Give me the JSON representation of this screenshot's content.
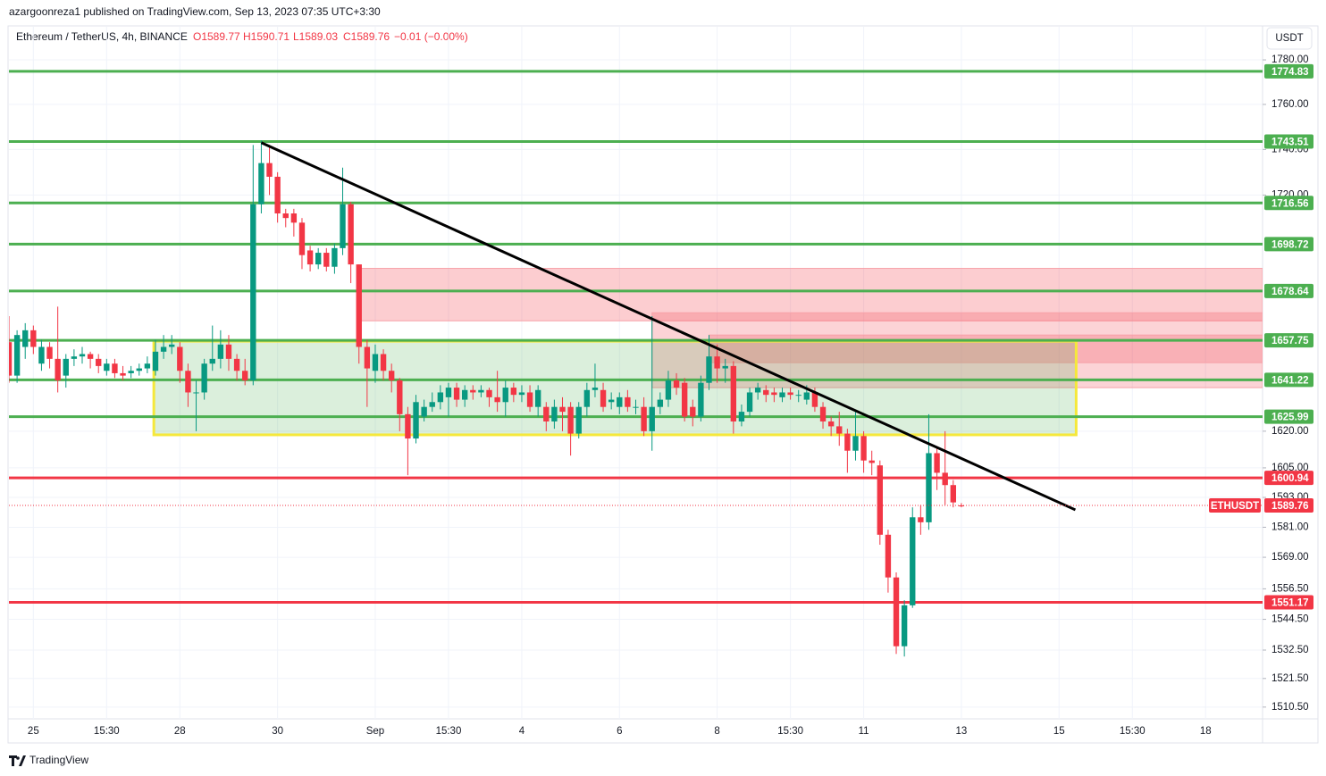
{
  "chart_data": {
    "type": "candlestick",
    "published": "azargoonreza1 published on TradingView.com, Sep 13, 2023 07:35 UTC+3:30",
    "symbol": "Ethereum / TetherUS, 4h, BINANCE",
    "ohlc_labels": [
      "O1589.77",
      "H1590.71",
      "L1589.03",
      "C1589.76"
    ],
    "change": "−0.01 (−0.00%)",
    "currency": "USDT",
    "brand": "TradingView",
    "log_scale": true,
    "grid": true,
    "up_color": "#089981",
    "down_color": "#f23645",
    "ylim": [
      1506,
      1795
    ],
    "yticks": [
      {
        "value": 1780,
        "label": "1780.00"
      },
      {
        "value": 1760,
        "label": "1760.00"
      },
      {
        "value": 1740,
        "label": "1740.00"
      },
      {
        "value": 1720,
        "label": "1720.00"
      },
      {
        "value": 1620,
        "label": "1620.00"
      },
      {
        "value": 1605,
        "label": "1605.00"
      },
      {
        "value": 1593,
        "label": "1593.00"
      },
      {
        "value": 1581,
        "label": "1581.00"
      },
      {
        "value": 1569,
        "label": "1569.00"
      },
      {
        "value": 1556.5,
        "label": "1556.50"
      },
      {
        "value": 1544.5,
        "label": "1544.50"
      },
      {
        "value": 1532.5,
        "label": "1532.50"
      },
      {
        "value": 1521.5,
        "label": "1521.50"
      },
      {
        "value": 1510.5,
        "label": "1510.50"
      }
    ],
    "xlim": [
      0,
      154
    ],
    "xticks": [
      {
        "value": 3,
        "label": "25"
      },
      {
        "value": 12,
        "label": "15:30"
      },
      {
        "value": 21,
        "label": "28"
      },
      {
        "value": 33,
        "label": "30"
      },
      {
        "value": 45,
        "label": "Sep"
      },
      {
        "value": 54,
        "label": "15:30"
      },
      {
        "value": 63,
        "label": "4"
      },
      {
        "value": 75,
        "label": "6"
      },
      {
        "value": 87,
        "label": "8"
      },
      {
        "value": 96,
        "label": "15:30"
      },
      {
        "value": 105,
        "label": "11"
      },
      {
        "value": 117,
        "label": "13"
      },
      {
        "value": 129,
        "label": "15"
      },
      {
        "value": 138,
        "label": "15:30"
      },
      {
        "value": 147,
        "label": "18"
      }
    ],
    "candles": {
      "open": [
        1657,
        1643,
        1655,
        1662,
        1648,
        1655,
        1650,
        1643,
        1650,
        1651,
        1652,
        1650,
        1645,
        1648,
        1644,
        1644,
        1645,
        1646,
        1645,
        1653,
        1655,
        1655,
        1645,
        1636,
        1636,
        1648,
        1650,
        1656,
        1650,
        1645,
        1641,
        1716,
        1734,
        1728,
        1712,
        1712,
        1708,
        1696,
        1690,
        1695,
        1689,
        1697,
        1716,
        1690,
        1655,
        1645,
        1652,
        1645,
        1641,
        1627,
        1617,
        1626,
        1630,
        1632,
        1634,
        1638,
        1633,
        1637,
        1636,
        1637,
        1634,
        1632,
        1638,
        1635,
        1636,
        1630,
        1630,
        1624,
        1630,
        1630,
        1619,
        1630,
        1637,
        1637,
        1632,
        1630,
        1634,
        1630,
        1630,
        1620,
        1630,
        1633,
        1641,
        1640,
        1630,
        1626,
        1640,
        1651,
        1646,
        1647,
        1624,
        1628,
        1636,
        1637,
        1636,
        1634,
        1636,
        1635,
        1633,
        1636,
        1630,
        1624,
        1622,
        1619,
        1612,
        1618,
        1608,
        1606,
        1578,
        1561,
        1534,
        1550,
        1585,
        1583,
        1611,
        1603,
        1598,
        1589.77
      ],
      "high": [
        1668,
        1662,
        1665,
        1664,
        1658,
        1657,
        1672,
        1652,
        1654,
        1655,
        1653,
        1652,
        1650,
        1650,
        1647,
        1647,
        1648,
        1651,
        1658,
        1660,
        1660,
        1657,
        1648,
        1641,
        1650,
        1664,
        1662,
        1660,
        1652,
        1650,
        1742,
        1744,
        1742,
        1730,
        1714,
        1714,
        1710,
        1698,
        1697,
        1697,
        1699,
        1732,
        1717,
        1690,
        1658,
        1656,
        1654,
        1648,
        1642,
        1630,
        1635,
        1633,
        1636,
        1639,
        1640,
        1640,
        1639,
        1639,
        1639,
        1638,
        1645,
        1641,
        1640,
        1639,
        1639,
        1639,
        1632,
        1633,
        1634,
        1632,
        1632,
        1640,
        1648,
        1640,
        1636,
        1636,
        1637,
        1633,
        1634,
        1668,
        1636,
        1645,
        1644,
        1642,
        1633,
        1643,
        1660,
        1656,
        1650,
        1649,
        1631,
        1638,
        1640,
        1639,
        1638,
        1638,
        1638,
        1637,
        1639,
        1638,
        1632,
        1626,
        1628,
        1621,
        1628,
        1620,
        1612,
        1608,
        1580,
        1563,
        1552,
        1589,
        1590,
        1627,
        1613,
        1620,
        1600,
        1590.71
      ],
      "low": [
        1640,
        1640,
        1650,
        1652,
        1645,
        1646,
        1636,
        1638,
        1647,
        1648,
        1646,
        1644,
        1643,
        1642,
        1641,
        1642,
        1643,
        1644,
        1643,
        1650,
        1652,
        1640,
        1630,
        1620,
        1633,
        1645,
        1646,
        1645,
        1641,
        1639,
        1639,
        1712,
        1720,
        1708,
        1706,
        1702,
        1688,
        1687,
        1688,
        1687,
        1686,
        1694,
        1682,
        1648,
        1630,
        1640,
        1641,
        1636,
        1620,
        1602,
        1615,
        1624,
        1628,
        1629,
        1626,
        1630,
        1630,
        1633,
        1634,
        1630,
        1628,
        1626,
        1632,
        1632,
        1628,
        1626,
        1620,
        1621,
        1620,
        1610,
        1617,
        1626,
        1634,
        1628,
        1629,
        1627,
        1628,
        1627,
        1618,
        1612,
        1627,
        1630,
        1635,
        1624,
        1622,
        1624,
        1637,
        1640,
        1640,
        1619,
        1622,
        1626,
        1633,
        1632,
        1632,
        1632,
        1633,
        1632,
        1631,
        1628,
        1621,
        1618,
        1614,
        1603,
        1608,
        1603,
        1602,
        1574,
        1555,
        1531,
        1530,
        1549,
        1578,
        1580,
        1596,
        1590,
        1589,
        1589.03
      ],
      "close": [
        1643,
        1660,
        1662,
        1655,
        1655,
        1650,
        1641,
        1650,
        1651,
        1652,
        1650,
        1647,
        1648,
        1644,
        1643,
        1645,
        1646,
        1648,
        1653,
        1655,
        1656,
        1645,
        1636,
        1636,
        1648,
        1650,
        1656,
        1650,
        1645,
        1641,
        1716,
        1734,
        1728,
        1712,
        1710,
        1708,
        1694,
        1690,
        1695,
        1689,
        1697,
        1716,
        1690,
        1655,
        1646,
        1652,
        1645,
        1641,
        1627,
        1617,
        1632,
        1630,
        1632,
        1636,
        1638,
        1633,
        1637,
        1636,
        1637,
        1634,
        1632,
        1638,
        1635,
        1636,
        1630,
        1637,
        1624,
        1630,
        1628,
        1619,
        1630,
        1637,
        1638,
        1630,
        1633,
        1634,
        1630,
        1630,
        1620,
        1630,
        1633,
        1641,
        1638,
        1626,
        1626,
        1640,
        1651,
        1646,
        1647,
        1624,
        1628,
        1636,
        1638,
        1635,
        1635,
        1636,
        1635,
        1635,
        1636,
        1630,
        1624,
        1622,
        1619,
        1612,
        1618,
        1608,
        1607,
        1578,
        1561,
        1534,
        1550,
        1585,
        1583,
        1611,
        1603,
        1598,
        1591,
        1589.76
      ]
    },
    "levels": [
      {
        "value": 1774.83,
        "color": "#4caf50"
      },
      {
        "value": 1743.51,
        "color": "#4caf50"
      },
      {
        "value": 1716.56,
        "color": "#4caf50"
      },
      {
        "value": 1698.72,
        "color": "#4caf50"
      },
      {
        "value": 1678.64,
        "color": "#4caf50"
      },
      {
        "value": 1657.75,
        "color": "#4caf50"
      },
      {
        "value": 1641.22,
        "color": "#4caf50"
      },
      {
        "value": 1625.99,
        "color": "#4caf50"
      },
      {
        "value": 1600.94,
        "color": "#f23645"
      },
      {
        "value": 1551.17,
        "color": "#f23645"
      }
    ],
    "zones": [
      {
        "x": [
          43,
          154
        ],
        "y": [
          1666,
          1688.3
        ],
        "color": "rgba(242,54,69,0.25)",
        "border": "#f7a1a8"
      },
      {
        "x": [
          79,
          154
        ],
        "y": [
          1638,
          1669.4
        ],
        "color": "rgba(242,54,69,0.22)",
        "border": "#f7a1a8"
      },
      {
        "x": [
          86,
          154
        ],
        "y": [
          1648.4,
          1660
        ],
        "color": "rgba(242,54,69,0.22)",
        "border": "#f7a1a8"
      },
      {
        "x": [
          17.8,
          131.1
        ],
        "y": [
          1618.5,
          1657.4
        ],
        "color": "rgba(76,175,80,0.2)",
        "border": "#f5e83b"
      }
    ],
    "trendline": {
      "x": [
        31,
        131
      ],
      "y": [
        1743,
        1588
      ],
      "color": "#000000"
    },
    "last_price": {
      "name": "ETHUSDT",
      "value": 1589.76,
      "color": "#f23645"
    }
  }
}
